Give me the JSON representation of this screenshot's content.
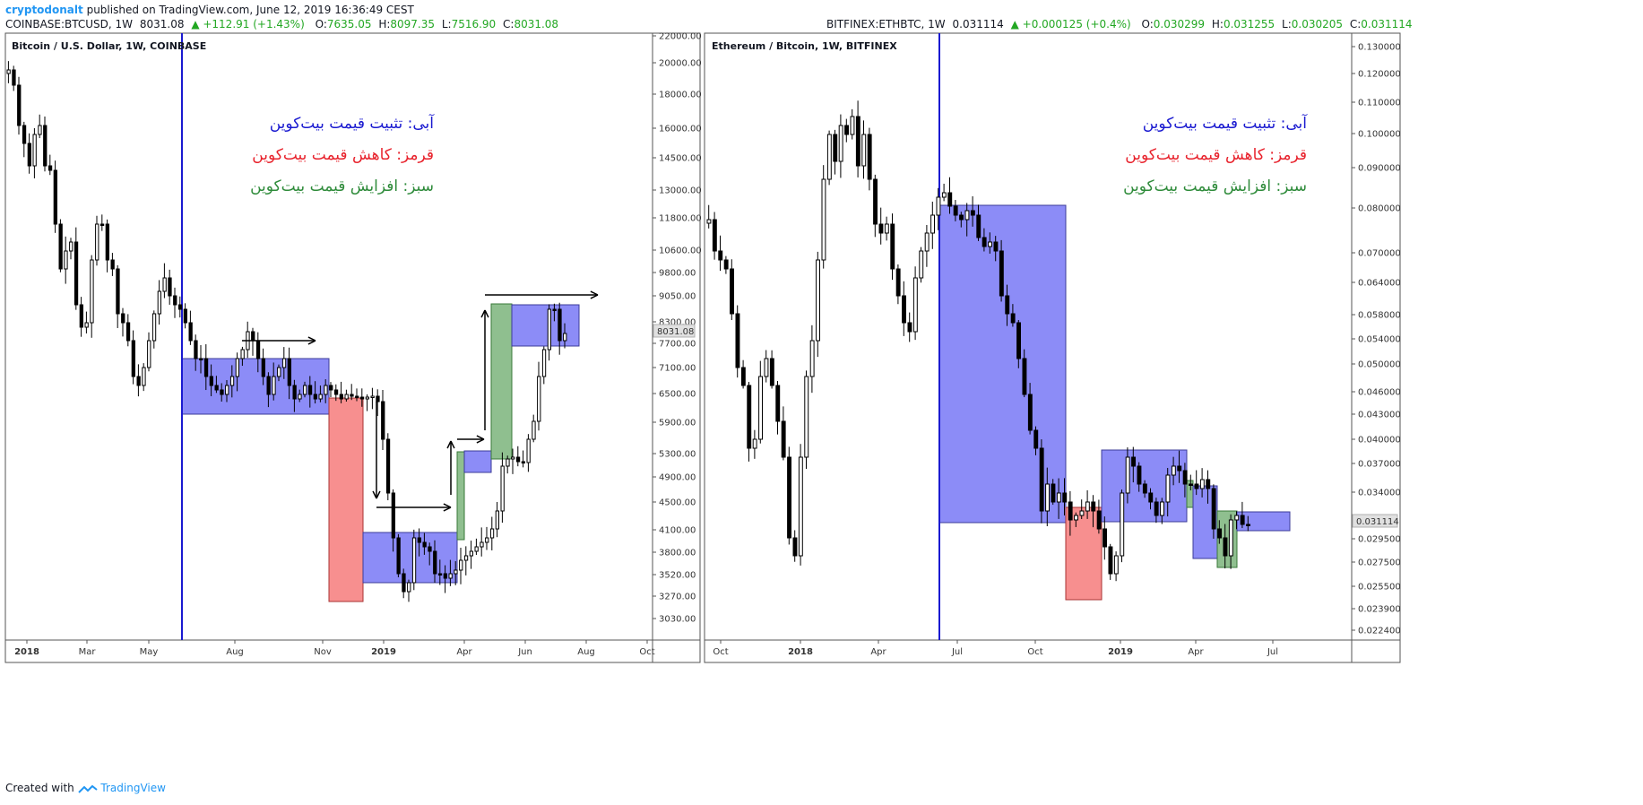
{
  "header": {
    "user": "cryptodonalt",
    "published": "published on TradingView.com, June 12, 2019 16:36:49 CEST"
  },
  "footer": {
    "created_with": "Created with",
    "brand": "TradingView"
  },
  "colors": {
    "blue_box": "#8c8cf7",
    "red_box": "#f78f8f",
    "green_box": "#8fbf8f",
    "vline": "#1a1ad0",
    "blue_text": "#1a1ad0",
    "red_text": "#e8222c",
    "green_text": "#2e8b3a"
  },
  "chart_data": [
    {
      "type": "candlestick",
      "symbol_line": {
        "symbol": "COINBASE:BTCUSD, 1W",
        "last": "8031.08",
        "change": "+112.91 (+1.43%)",
        "O": "7635.05",
        "H": "8097.35",
        "L": "7516.90",
        "C": "8031.08"
      },
      "title": "Bitcoin / U.S. Dollar, 1W, COINBASE",
      "price_label": "8031.08",
      "x_ticks": [
        "2018",
        "Mar",
        "May",
        "Aug",
        "Nov",
        "2019",
        "Apr",
        "Jun",
        "Aug",
        "Oct"
      ],
      "y_ticks": [
        "22000.00",
        "20000.00",
        "18000.00",
        "16000.00",
        "14500.00",
        "13000.00",
        "11800.00",
        "10600.00",
        "9800.00",
        "9050.00",
        "8300.00",
        "7700.00",
        "7100.00",
        "6500.00",
        "5900.00",
        "5300.00",
        "4900.00",
        "4500.00",
        "4100.00",
        "3800.00",
        "3520.00",
        "3270.00",
        "3030.00"
      ],
      "y_scale": "log",
      "legend": [
        "آبی: تثبیت قیمت بیت‌کوین",
        "قرمز: کاهش قیمت بیت‌کوین",
        "سبز: افزایش قیمت بیت‌کوین"
      ]
    },
    {
      "type": "candlestick",
      "symbol_line": {
        "symbol": "BITFINEX:ETHBTC, 1W",
        "last": "0.031114",
        "change": "+0.000125 (+0.4%)",
        "O": "0.030299",
        "H": "0.031255",
        "L": "0.030205",
        "C": "0.031114"
      },
      "title": "Ethereum / Bitcoin, 1W, BITFINEX",
      "price_label": "0.031114",
      "x_ticks": [
        "Oct",
        "2018",
        "Apr",
        "Jul",
        "Oct",
        "2019",
        "Apr",
        "Jul"
      ],
      "y_ticks": [
        "0.130000",
        "0.120000",
        "0.110000",
        "0.100000",
        "0.090000",
        "0.080000",
        "0.070000",
        "0.064000",
        "0.058000",
        "0.054000",
        "0.050000",
        "0.046000",
        "0.043000",
        "0.040000",
        "0.037000",
        "0.034000",
        "0.029500",
        "0.027500",
        "0.025500",
        "0.023900",
        "0.022400"
      ],
      "y_scale": "log",
      "legend": [
        "آبی: تثبیت قیمت بیت‌کوین",
        "قرمز: کاهش قیمت بیت‌کوین",
        "سبز: افزایش قیمت بیت‌کوین"
      ]
    }
  ]
}
